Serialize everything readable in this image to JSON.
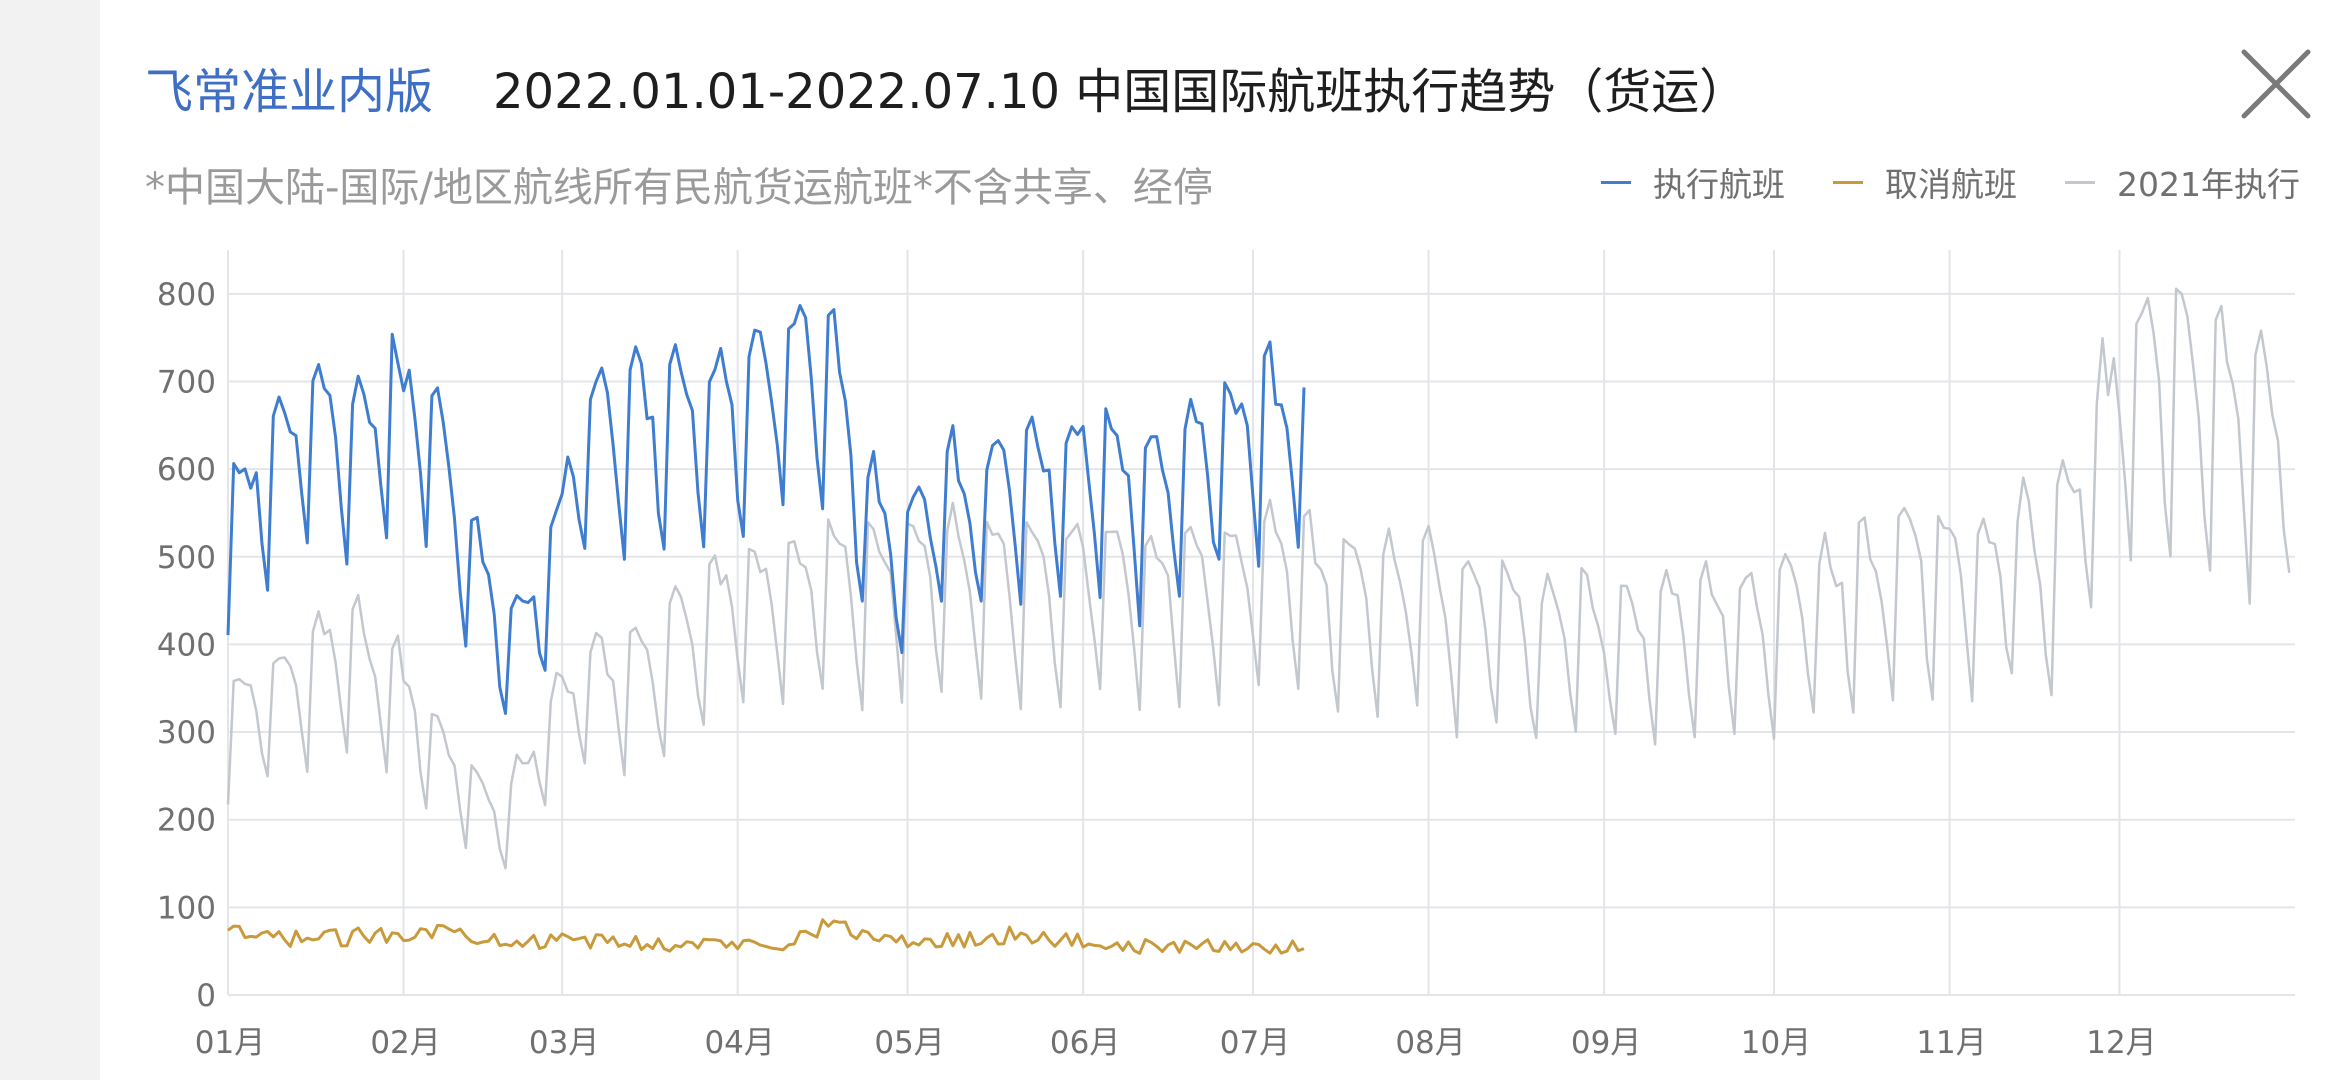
{
  "header": {
    "app_name": "飞常准业内版",
    "title": "2022.01.01-2022.07.10 中国国际航班执行趋势（货运）",
    "subtitle": "*中国大陆-国际/地区航线所有民航货运航班*不含共享、经停",
    "close_icon": "close-icon"
  },
  "legend": {
    "items": [
      {
        "label": "执行航班",
        "color": "#3f7dd1"
      },
      {
        "label": "取消航班",
        "color": "#c99a3b"
      },
      {
        "label": "2021年执行",
        "color": "#c3c7ce"
      }
    ]
  },
  "chart_data": {
    "type": "line",
    "title": "2022.01.01-2022.07.10 中国国际航班执行趋势（货运）",
    "xlabel": "",
    "ylabel": "",
    "ylim": [
      0,
      850
    ],
    "yticks": [
      0,
      100,
      200,
      300,
      400,
      500,
      600,
      700,
      800
    ],
    "x_categories": [
      "01月",
      "02月",
      "03月",
      "04月",
      "05月",
      "06月",
      "07月",
      "08月",
      "09月",
      "10月",
      "11月",
      "12月"
    ],
    "grid": true,
    "legend_position": "top-right",
    "series": [
      {
        "name": "2021年执行",
        "color": "#c3c7ce",
        "x_range": [
          "2021-01-01",
          "2021-12-31"
        ],
        "points_per_week": 7,
        "base": [
          300,
          340,
          360,
          390,
          360,
          300,
          240,
          200,
          300,
          360,
          350,
          380,
          420,
          450,
          460,
          470,
          470,
          480,
          480,
          470,
          470,
          470,
          470,
          470,
          470,
          460,
          480,
          470,
          450,
          440,
          460,
          420,
          430,
          400,
          420,
          400,
          410,
          420,
          420,
          420,
          440,
          460,
          470,
          480,
          470,
          500,
          480,
          600,
          700,
          690,
          680,
          640,
          650,
          600
        ],
        "amp": 0.18
      },
      {
        "name": "执行航班",
        "color": "#3f7dd1",
        "x_range": [
          "2022-01-01",
          "2022-07-10"
        ],
        "points_per_week": 7,
        "base": [
          520,
          600,
          640,
          620,
          660,
          660,
          520,
          400,
          460,
          640,
          640,
          660,
          640,
          680,
          700,
          720,
          560,
          500,
          560,
          560,
          580,
          590,
          600,
          560,
          600,
          620,
          640,
          650,
          640,
          640,
          650,
          640,
          620,
          630
        ],
        "amp": 0.14
      },
      {
        "name": "取消航班",
        "color": "#c99a3b",
        "x_range": [
          "2022-01-01",
          "2022-07-10"
        ],
        "points_per_week": 7,
        "base": [
          70,
          65,
          65,
          65,
          70,
          75,
          70,
          65,
          60,
          62,
          60,
          58,
          58,
          58,
          60,
          80,
          70,
          60,
          62,
          65,
          70,
          62,
          60,
          55,
          55,
          55,
          55,
          55,
          58,
          60,
          60,
          80,
          82,
          82
        ],
        "amp": 0.15
      }
    ]
  }
}
